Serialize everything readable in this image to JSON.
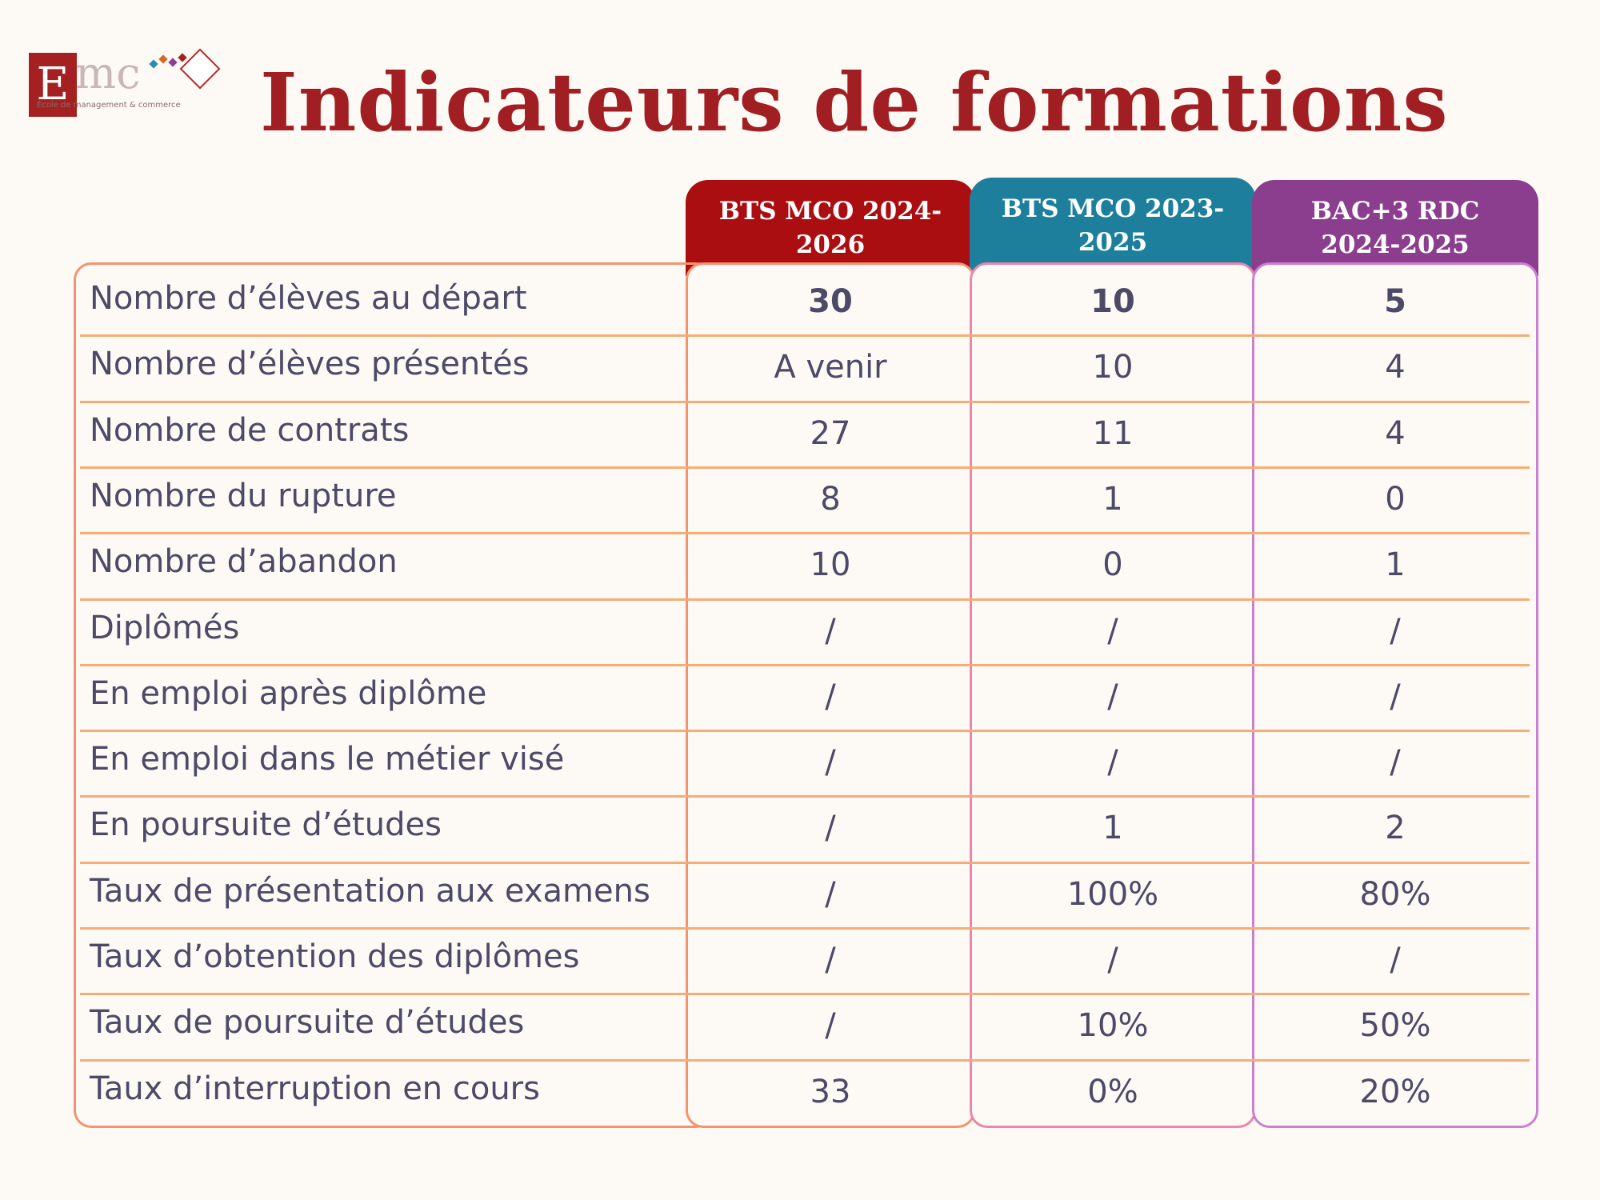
{
  "title": "Indicateurs de formations",
  "logo": {
    "letter": "E",
    "wordmark": "mc",
    "tagline": "École de management & commerce"
  },
  "columns": [
    {
      "line1": "BTS MCO 2024-",
      "line2": "2026",
      "color": "#aa0e10"
    },
    {
      "line1": "BTS MCO 2023-",
      "line2": "2025",
      "color": "#1e7f9d"
    },
    {
      "line1": "BAC+3 RDC",
      "line2": "2024-2025",
      "color": "#8b3e8e"
    }
  ],
  "rows": [
    {
      "label": "Nombre d’élèves au départ",
      "values": [
        "30",
        "10",
        "5"
      ],
      "bold": true
    },
    {
      "label": "Nombre d’élèves présentés",
      "values": [
        "A venir",
        "10",
        "4"
      ]
    },
    {
      "label": "Nombre de contrats",
      "values": [
        "27",
        "11",
        "4"
      ]
    },
    {
      "label": "Nombre du rupture",
      "values": [
        "8",
        "1",
        "0"
      ]
    },
    {
      "label": "Nombre d’abandon",
      "values": [
        "10",
        "0",
        "1"
      ]
    },
    {
      "label": "Diplômés",
      "values": [
        "/",
        "/",
        "/"
      ]
    },
    {
      "label": "En emploi après diplôme",
      "values": [
        "/",
        "/",
        "/"
      ]
    },
    {
      "label": "En emploi dans le métier visé",
      "values": [
        "/",
        "/",
        "/"
      ]
    },
    {
      "label": "En poursuite d’études",
      "values": [
        "/",
        "1",
        "2"
      ]
    },
    {
      "label": "Taux de présentation aux examens",
      "values": [
        "/",
        "100%",
        "80%"
      ]
    },
    {
      "label": "Taux d’obtention des diplômes",
      "values": [
        "/",
        "/",
        "/"
      ]
    },
    {
      "label": "Taux de poursuite d’études",
      "values": [
        "/",
        "10%",
        "50%"
      ]
    },
    {
      "label": "Taux d’interruption en cours",
      "values": [
        "33",
        "0%",
        "20%"
      ]
    }
  ]
}
